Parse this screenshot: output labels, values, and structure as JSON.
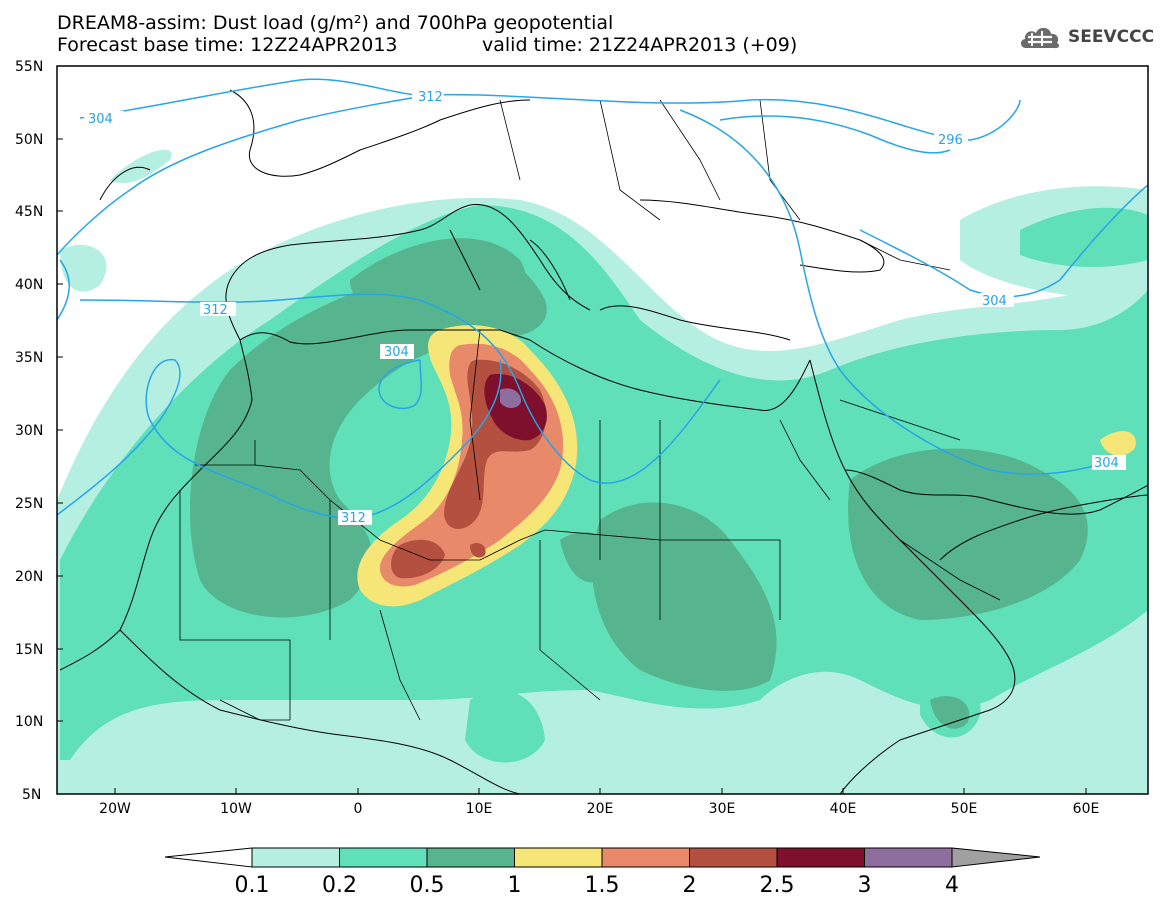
{
  "title": {
    "line1": "DREAM8-assim: Dust load (g/m²) and 700hPa geopotential",
    "line2a": "Forecast base time: 12Z24APR2013",
    "line2b": "valid time: 21Z24APR2013 (+09)"
  },
  "logo": {
    "text": "SEEVCCC",
    "icon": "cloud-icon"
  },
  "map": {
    "lat_ticks": [
      "55N",
      "50N",
      "45N",
      "40N",
      "35N",
      "30N",
      "25N",
      "20N",
      "15N",
      "10N",
      "5N"
    ],
    "lon_ticks": [
      "20W",
      "10W",
      "0",
      "10E",
      "20E",
      "30E",
      "40E",
      "50E",
      "60E"
    ],
    "contour_labels": [
      "304",
      "312",
      "296",
      "304",
      "312",
      "304",
      "312",
      "304"
    ]
  },
  "colorbar": {
    "labels": [
      "0.1",
      "0.2",
      "0.5",
      "1",
      "1.5",
      "2",
      "2.5",
      "3",
      "4"
    ],
    "colors": [
      "#b4efe2",
      "#5fe0b8",
      "#56b58f",
      "#f6e678",
      "#e8896a",
      "#b3503f",
      "#7e0f2d",
      "#8d6e9e"
    ],
    "under_color": "#ffffff",
    "over_color": "#a0a0a0"
  }
}
